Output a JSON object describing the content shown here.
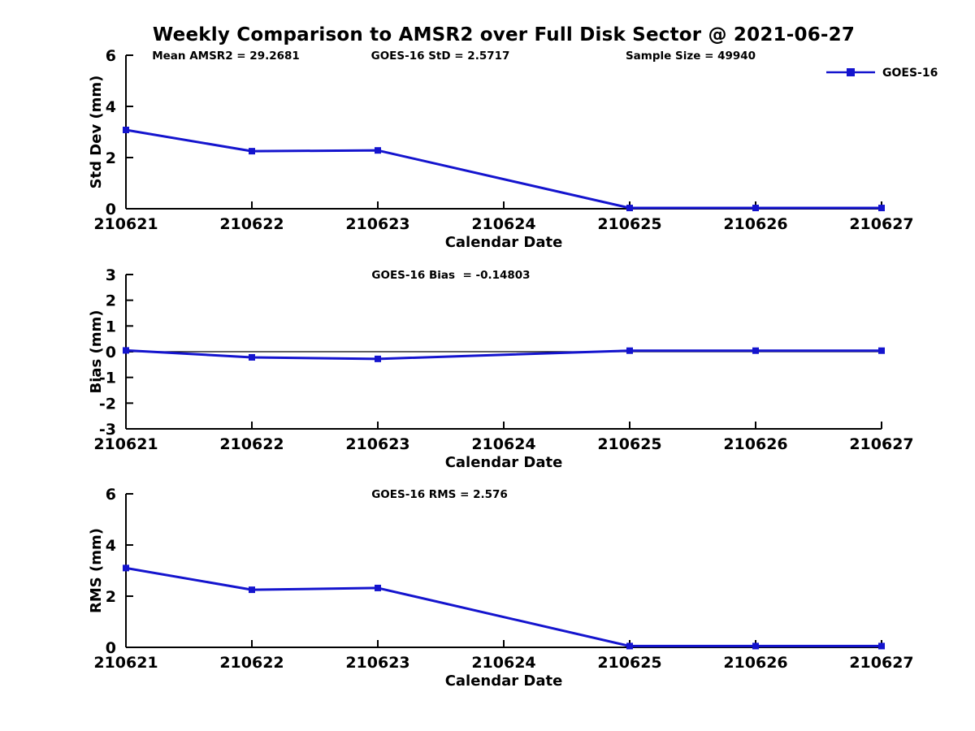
{
  "title": "Weekly Comparison to AMSR2 over Full Disk Sector @ 2021-06-27",
  "colors": {
    "line": "#1414CE",
    "axis": "#000000",
    "zero_line": "#000000",
    "background": "#ffffff"
  },
  "legend": {
    "label": "GOES-16",
    "position": "top-right"
  },
  "x_axis": {
    "label": "Calendar Date",
    "tick_labels": [
      "210621",
      "210622",
      "210623",
      "210624",
      "210625",
      "210626",
      "210627"
    ]
  },
  "chart_data": [
    {
      "id": "stddev",
      "type": "line",
      "ylabel": "Std Dev (mm)",
      "xlabel": "Calendar Date",
      "ylim": [
        0,
        6
      ],
      "yticks": [
        0,
        2,
        4,
        6
      ],
      "grid": false,
      "zero_line": false,
      "legend_visible": true,
      "annotations": [
        "Mean AMSR2 = 29.2681",
        "GOES-16 StD = 2.5717",
        "Sample Size = 49940"
      ],
      "x": [
        "210621",
        "210622",
        "210623",
        "210625",
        "210626",
        "210627"
      ],
      "series": [
        {
          "name": "GOES-16",
          "values": [
            3.08,
            2.25,
            2.28,
            0.03,
            0.03,
            0.03
          ]
        }
      ]
    },
    {
      "id": "bias",
      "type": "line",
      "ylabel": "Bias (mm)",
      "xlabel": "Calendar Date",
      "ylim": [
        -3,
        3
      ],
      "yticks": [
        -3,
        -2,
        -1,
        0,
        1,
        2,
        3
      ],
      "grid": false,
      "zero_line": true,
      "legend_visible": false,
      "annotations": [
        "GOES-16 Bias  = -0.14803"
      ],
      "x": [
        "210621",
        "210622",
        "210623",
        "210625",
        "210626",
        "210627"
      ],
      "series": [
        {
          "name": "GOES-16",
          "values": [
            0.05,
            -0.22,
            -0.28,
            0.04,
            0.04,
            0.04
          ]
        }
      ]
    },
    {
      "id": "rms",
      "type": "line",
      "ylabel": "RMS (mm)",
      "xlabel": "Calendar Date",
      "ylim": [
        0,
        6
      ],
      "yticks": [
        0,
        2,
        4,
        6
      ],
      "grid": false,
      "zero_line": false,
      "legend_visible": false,
      "annotations": [
        "GOES-16 RMS = 2.576"
      ],
      "x": [
        "210621",
        "210622",
        "210623",
        "210625",
        "210626",
        "210627"
      ],
      "series": [
        {
          "name": "GOES-16",
          "values": [
            3.1,
            2.25,
            2.32,
            0.05,
            0.05,
            0.05
          ]
        }
      ]
    }
  ]
}
